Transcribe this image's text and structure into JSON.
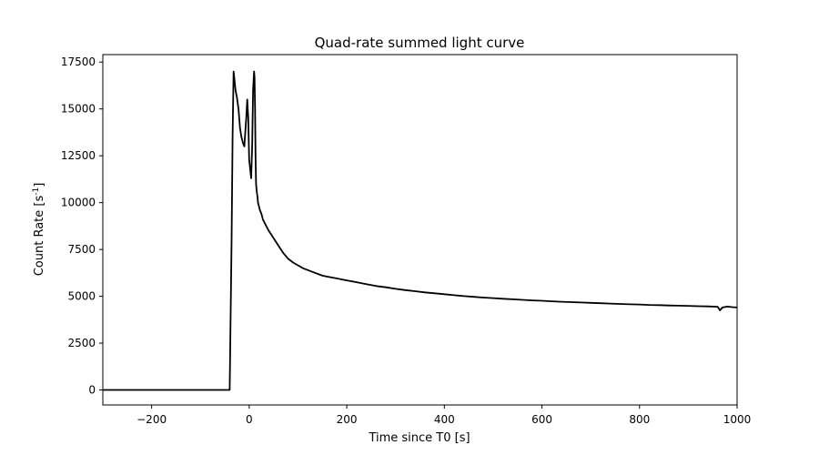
{
  "chart_data": {
    "type": "line",
    "title": "Quad-rate summed light curve",
    "xlabel": "Time since T0 [s]",
    "ylabel": "Count Rate [s",
    "ylabel_superscript": "-1",
    "ylabel_suffix": "]",
    "xlim": [
      -300,
      1000
    ],
    "ylim": [
      -800,
      17900
    ],
    "xticks": [
      -200,
      0,
      200,
      400,
      600,
      800,
      1000
    ],
    "xtick_labels": [
      "−200",
      "0",
      "200",
      "400",
      "600",
      "800",
      "1000"
    ],
    "yticks": [
      0,
      2500,
      5000,
      7500,
      10000,
      12500,
      15000,
      17500
    ],
    "ytick_labels": [
      "0",
      "2500",
      "5000",
      "7500",
      "10000",
      "12500",
      "15000",
      "17500"
    ],
    "grid": false,
    "line_color": "#000000",
    "series": [
      {
        "x": [
          -300,
          -100,
          -40,
          -36,
          -34,
          -32,
          -30,
          -28,
          -25,
          -22,
          -19,
          -16,
          -13,
          -10,
          -8,
          -6,
          -4,
          -2,
          0,
          2,
          4,
          6,
          8,
          10,
          11,
          12,
          13,
          14,
          15,
          16,
          17,
          18,
          20,
          22,
          25,
          28,
          32,
          36,
          40,
          45,
          50,
          55,
          60,
          65,
          70,
          75,
          80,
          90,
          100,
          110,
          120,
          130,
          140,
          150,
          160,
          170,
          180,
          190,
          200,
          220,
          240,
          260,
          280,
          300,
          320,
          340,
          360,
          380,
          400,
          420,
          440,
          460,
          480,
          500,
          520,
          540,
          560,
          580,
          600,
          620,
          640,
          660,
          680,
          700,
          720,
          740,
          760,
          780,
          800,
          820,
          840,
          860,
          880,
          900,
          920,
          940,
          960,
          965,
          970,
          980,
          990,
          1000
        ],
        "y": [
          0,
          0,
          0,
          8000,
          13500,
          17000,
          16500,
          16000,
          15600,
          15000,
          14000,
          13500,
          13200,
          13000,
          13800,
          14500,
          15500,
          14500,
          12300,
          11800,
          11300,
          13000,
          16000,
          17000,
          16700,
          15000,
          12500,
          11000,
          10700,
          10500,
          10300,
          10000,
          9800,
          9600,
          9400,
          9100,
          8900,
          8700,
          8500,
          8300,
          8100,
          7900,
          7700,
          7500,
          7300,
          7150,
          7000,
          6800,
          6650,
          6500,
          6400,
          6300,
          6200,
          6100,
          6050,
          6000,
          5950,
          5900,
          5850,
          5750,
          5650,
          5550,
          5480,
          5400,
          5330,
          5270,
          5210,
          5160,
          5110,
          5060,
          5010,
          4970,
          4930,
          4900,
          4870,
          4840,
          4810,
          4780,
          4760,
          4730,
          4710,
          4690,
          4670,
          4650,
          4630,
          4610,
          4590,
          4570,
          4560,
          4540,
          4530,
          4510,
          4500,
          4490,
          4470,
          4460,
          4440,
          4250,
          4400,
          4450,
          4420,
          4400
        ]
      }
    ]
  }
}
